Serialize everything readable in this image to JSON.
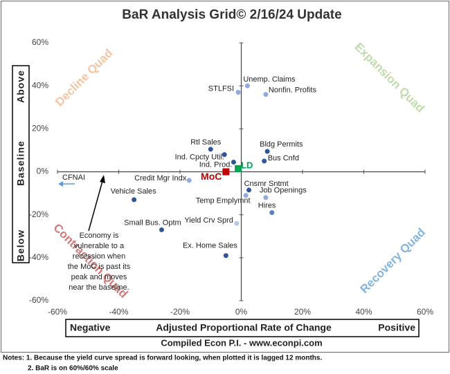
{
  "chart_data": {
    "type": "scatter",
    "title": "BaR Analysis Grid© 2/16/24 Update",
    "xlim": [
      -60,
      60
    ],
    "ylim": [
      -60,
      60
    ],
    "xticks": [
      {
        "value": -60,
        "label": "-60%"
      },
      {
        "value": -40,
        "label": "-40%"
      },
      {
        "value": -20,
        "label": "-20%"
      },
      {
        "value": 0,
        "label": "0%"
      },
      {
        "value": 20,
        "label": "20%"
      },
      {
        "value": 40,
        "label": "40%"
      },
      {
        "value": 60,
        "label": "60%"
      }
    ],
    "yticks": [
      {
        "value": -60,
        "label": "-60%"
      },
      {
        "value": -40,
        "label": "-40%"
      },
      {
        "value": -20,
        "label": "-20%"
      },
      {
        "value": 0,
        "label": "0%"
      },
      {
        "value": 20,
        "label": "20%"
      },
      {
        "value": 40,
        "label": "40%"
      },
      {
        "value": 60,
        "label": "60%"
      }
    ],
    "points": [
      {
        "label": "STLFSI",
        "x": -1,
        "y": 37,
        "color": "#8faadc",
        "shape": "circle"
      },
      {
        "label": "Unemp. Claims",
        "x": 2,
        "y": 40,
        "color": "#8faadc",
        "shape": "circle"
      },
      {
        "label": "Nonfin. Profits",
        "x": 8,
        "y": 36,
        "color": "#8faadc",
        "shape": "circle"
      },
      {
        "label": "Rtl Sales",
        "x": -10,
        "y": 10.5,
        "color": "#2f5597",
        "shape": "circle"
      },
      {
        "label": "Ind. Cpcty Util.",
        "x": -5.5,
        "y": 8,
        "color": "#2f5597",
        "shape": "circle"
      },
      {
        "label": "Ind. Prod.",
        "x": -2.5,
        "y": 4.5,
        "color": "#2f5597",
        "shape": "circle"
      },
      {
        "label": "Bldg Permits",
        "x": 8.5,
        "y": 9.5,
        "color": "#2f5597",
        "shape": "circle"
      },
      {
        "label": "Bus Cnfd",
        "x": 7.5,
        "y": 5,
        "color": "#2f5597",
        "shape": "circle"
      },
      {
        "label": "Credit Mgr Indx",
        "x": -17,
        "y": -4,
        "color": "#8faadc",
        "shape": "circle"
      },
      {
        "label": "Cnsmr Sntmt",
        "x": 2.5,
        "y": -8.5,
        "color": "#2f5597",
        "shape": "circle"
      },
      {
        "label": "Job Openings",
        "x": 8,
        "y": -12,
        "color": "#8faadc",
        "shape": "circle"
      },
      {
        "label": "Temp Emplymnt",
        "x": 1.5,
        "y": -11,
        "color": "#8faadc",
        "shape": "circle"
      },
      {
        "label": "Hires",
        "x": 10,
        "y": -19,
        "color": "#5b7fc7",
        "shape": "circle"
      },
      {
        "label": "Vehicle Sales",
        "x": -35,
        "y": -13,
        "color": "#2f5597",
        "shape": "circle"
      },
      {
        "label": "Small Bus. Optm",
        "x": -26,
        "y": -27,
        "color": "#2f5597",
        "shape": "circle"
      },
      {
        "label": "Yield Crv Sprd",
        "x": -1.5,
        "y": -24,
        "color": "#b4c7e7",
        "shape": "circle"
      },
      {
        "label": "Ex. Home Sales",
        "x": -5,
        "y": -39,
        "color": "#2f5597",
        "shape": "circle"
      },
      {
        "label": "LD",
        "x": -1,
        "y": 1.5,
        "color": "#00a651",
        "shape": "square"
      },
      {
        "label": "MoC",
        "x": -5,
        "y": 0,
        "color": "#c00000",
        "shape": "square"
      }
    ],
    "quadrants": {
      "top_left": "Decline Quad",
      "top_right": "Expansion Quad",
      "bottom_left": "Contraction Quad",
      "bottom_right": "Recovery Quad"
    },
    "y_axis_labels": {
      "top": "Above",
      "middle": "Baseline",
      "bottom": "Below"
    },
    "x_axis_labels": {
      "left": "Negative",
      "middle": "Adjusted Proportional Rate of Change",
      "right": "Positive"
    },
    "offchart_label": "CFNAI",
    "annotation_lines": [
      "Economy is",
      "vulnerable to a",
      "recession when",
      "the MoC is past its",
      "peak and moves",
      "near the baseline."
    ],
    "source": "Compiled Econ P.I. - www.econpi.com",
    "notes": [
      "Notes: 1. Because the yield curve spread is forward looking, when plotted it is lagged 12 months.",
      "2. BaR is on 60%/60% scale"
    ]
  }
}
